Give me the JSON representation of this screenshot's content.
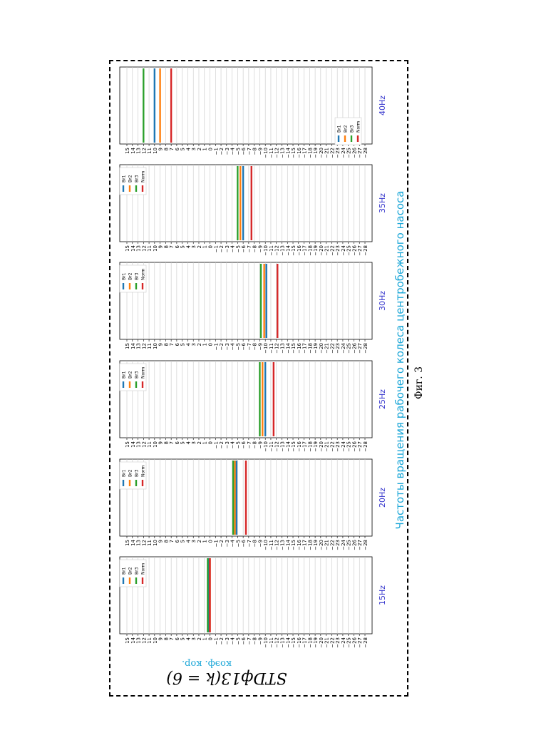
{
  "figure_caption": "Фиг. 3",
  "y_axis_label": "коэф. кор.",
  "formula": "STDф13(k = 6)",
  "x_axis_title": "Частоты вращения рабочего колеса центробежного насоса",
  "colors": {
    "Br1": "#1f77b4",
    "Br2": "#ff7f0e",
    "Br3": "#2ca02c",
    "Norm": "#d62728",
    "accent_text": "#1fa8d8",
    "freq_label": "#3333cc"
  },
  "chart_data": {
    "type": "bar",
    "ylim": [
      -28,
      15
    ],
    "yticks": [
      "15",
      "14",
      "13",
      "12",
      "11",
      "10",
      "9",
      "8",
      "7",
      "6",
      "5",
      "4",
      "3",
      "2",
      "1",
      "0",
      "−1",
      "−2",
      "−3",
      "−4",
      "−5",
      "−6",
      "−7",
      "−8",
      "−9",
      "−10",
      "−11",
      "−12",
      "−13",
      "−14",
      "−15",
      "−16",
      "−17",
      "−18",
      "−19",
      "−20",
      "−21",
      "−22",
      "−23",
      "−24",
      "−25",
      "−26",
      "−27",
      "−28"
    ],
    "categories": [
      "15Hz",
      "20Hz",
      "25Hz",
      "30Hz",
      "35Hz",
      "40Hz"
    ],
    "series": [
      {
        "name": "Br1",
        "values": [
          0.2,
          -4.8,
          -10.0,
          -10.2,
          -6.0,
          10.0
        ]
      },
      {
        "name": "Br2",
        "values": [
          0.0,
          -4.5,
          -9.5,
          -9.8,
          -5.5,
          9.0
        ]
      },
      {
        "name": "Br3",
        "values": [
          0.4,
          -4.2,
          -9.0,
          -9.2,
          -5.0,
          12.0
        ]
      },
      {
        "name": "Norm",
        "values": [
          0.0,
          -6.5,
          -11.5,
          -12.2,
          -7.5,
          7.0
        ]
      }
    ],
    "legend": [
      "Br1",
      "Br2",
      "Br3",
      "Norm"
    ],
    "grid": true
  }
}
